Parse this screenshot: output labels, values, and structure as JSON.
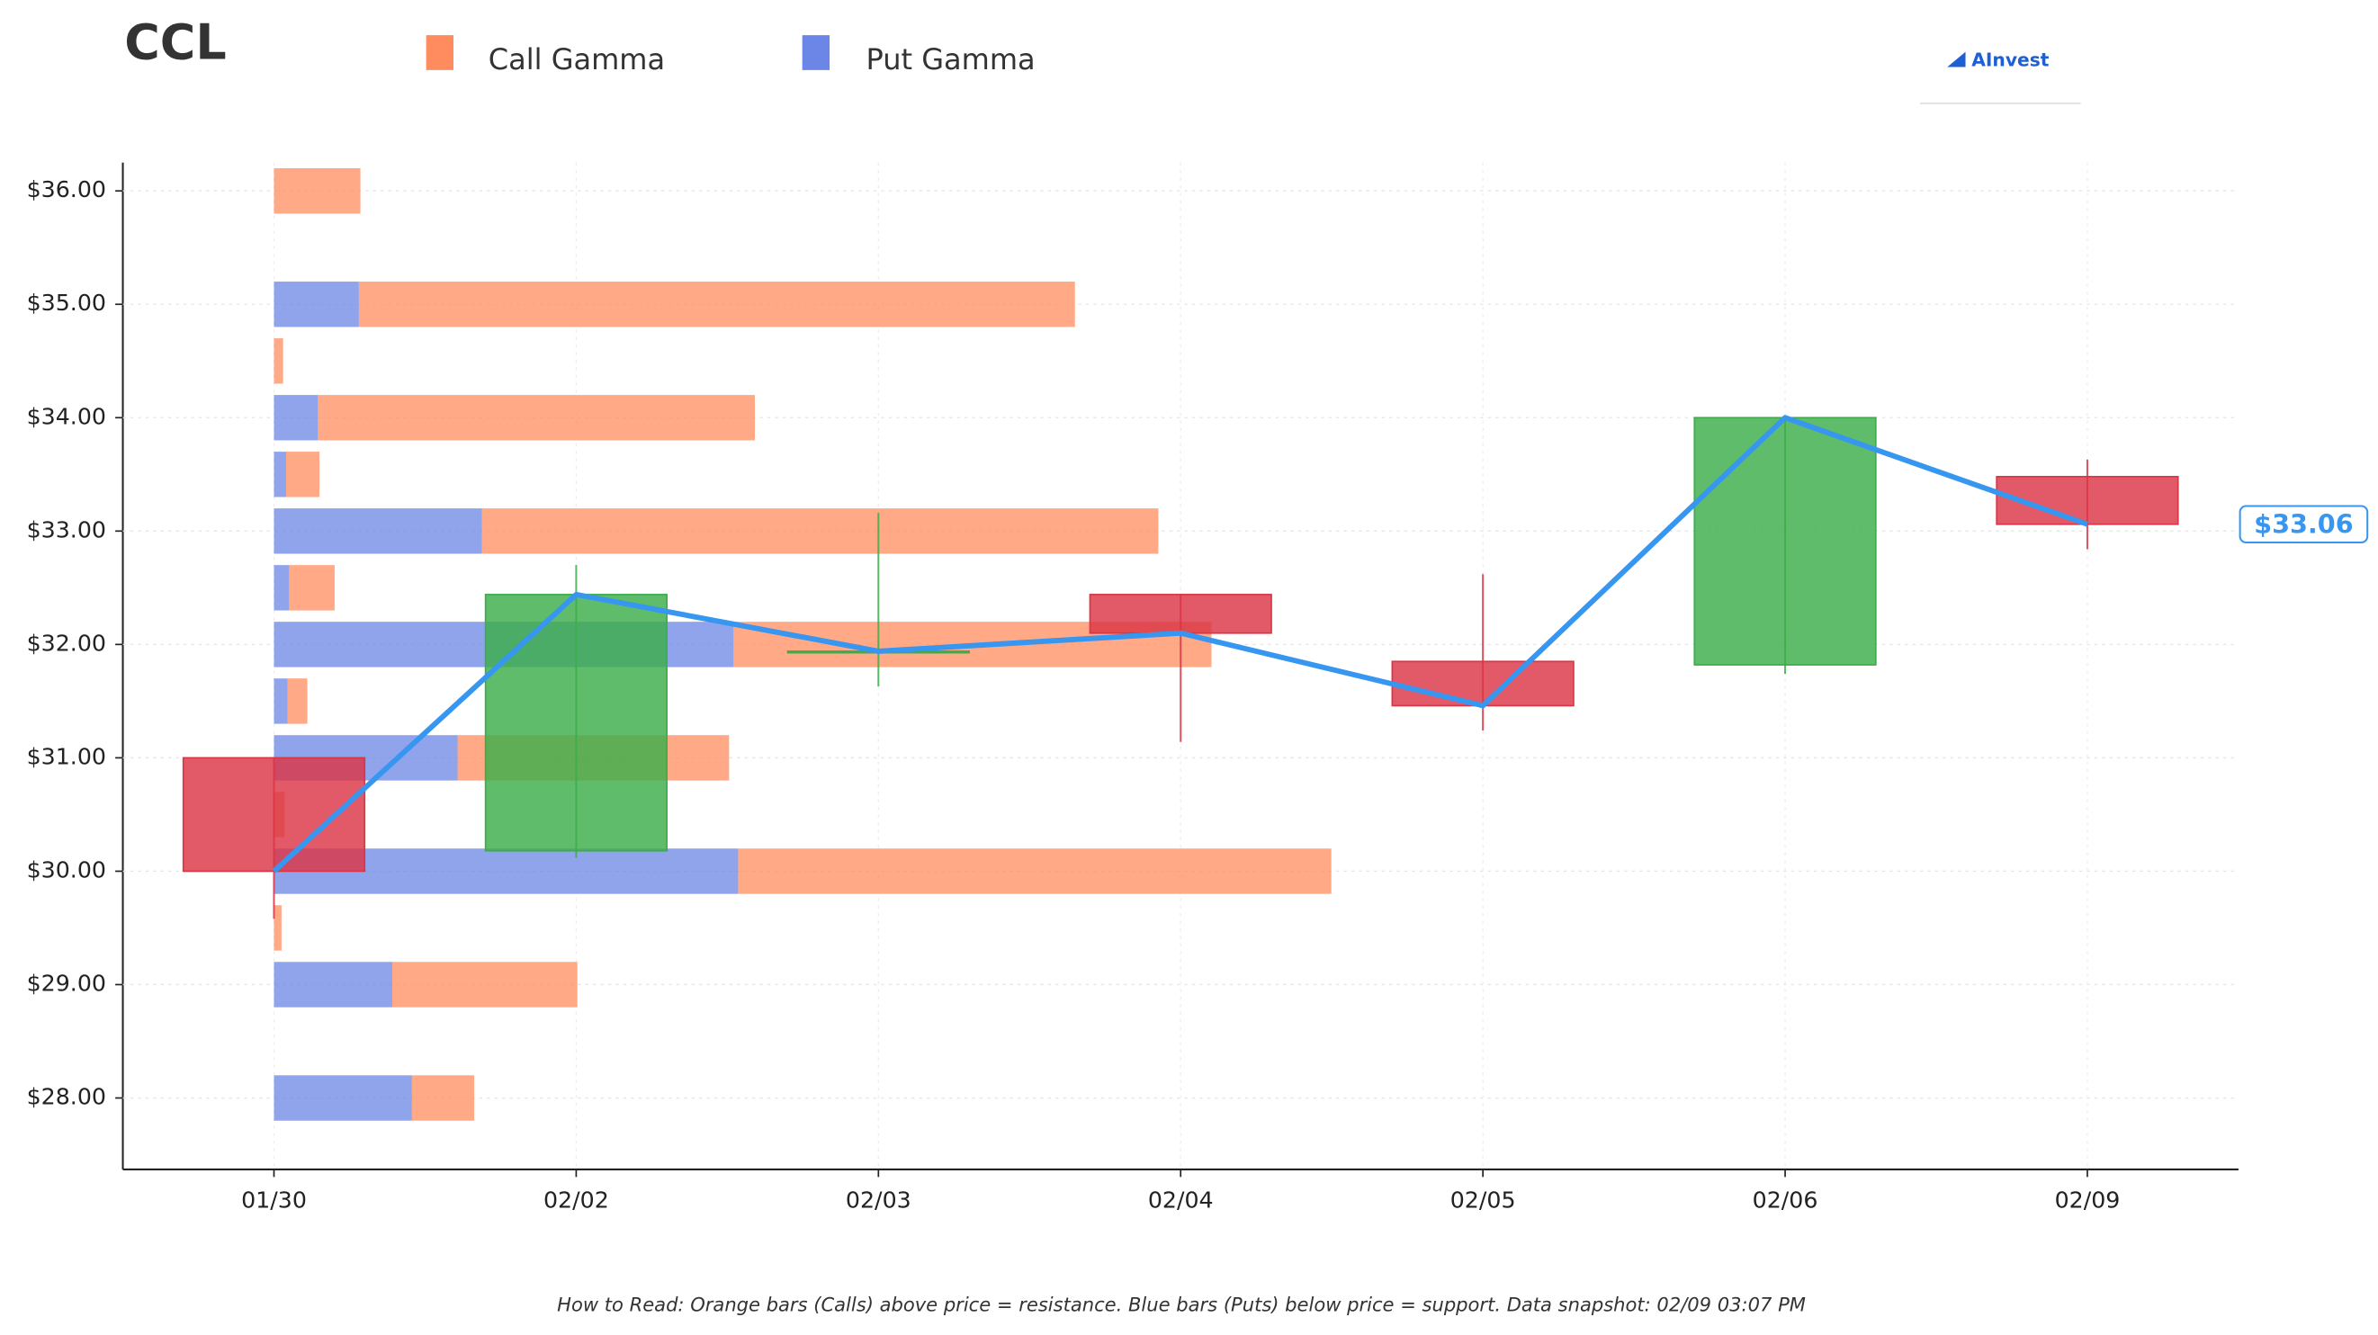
{
  "chart_data": {
    "type": "candlestick",
    "title": "CCL",
    "logo": "AInvest",
    "footnote": "How to Read: Orange bars (Calls) above price = resistance. Blue bars (Puts) below price = support. Data snapshot: 02/09 03:07 PM",
    "categories": [
      "01/30",
      "02/02",
      "02/03",
      "02/04",
      "02/05",
      "02/06",
      "02/09"
    ],
    "open": [
      31.0,
      30.18,
      31.94,
      32.44,
      31.85,
      31.82,
      33.48
    ],
    "high": [
      31.0,
      32.7,
      33.16,
      32.44,
      32.62,
      34.0,
      33.63
    ],
    "low": [
      29.58,
      30.12,
      31.63,
      31.14,
      31.24,
      31.74,
      32.84
    ],
    "close": [
      30.0,
      32.44,
      31.94,
      32.1,
      31.46,
      34.0,
      33.06
    ],
    "up_color": "#3cad4a",
    "down_color": "#dc3545",
    "line_color": "#3796f0",
    "last_price": {
      "value": 33.06,
      "label": "$33.06"
    },
    "ylim": [
      27.37,
      36.25
    ],
    "yticks": [
      {
        "value": 28,
        "label": "$28.00"
      },
      {
        "value": 29,
        "label": "$29.00"
      },
      {
        "value": 30,
        "label": "$30.00"
      },
      {
        "value": 31,
        "label": "$31.00"
      },
      {
        "value": 32,
        "label": "$32.00"
      },
      {
        "value": 33,
        "label": "$33.00"
      },
      {
        "value": 34,
        "label": "$34.00"
      },
      {
        "value": 35,
        "label": "$35.00"
      },
      {
        "value": 36,
        "label": "$36.00"
      }
    ],
    "grid": true,
    "gamma": {
      "strikes": [
        36,
        35,
        34.5,
        34,
        33.5,
        33,
        32.5,
        32,
        31.5,
        31,
        30.5,
        30,
        29.5,
        29,
        28
      ],
      "xlim": [
        0,
        1295
      ],
      "series": [
        {
          "name": "Put Gamma",
          "color": "#6b86e6",
          "values": [
            0,
            56,
            0,
            29,
            8,
            137,
            10,
            303,
            9,
            121,
            0,
            306,
            0,
            78,
            91
          ]
        },
        {
          "name": "Call Gamma",
          "color": "#ff8c5f",
          "values": [
            57,
            472,
            6,
            288,
            22,
            446,
            30,
            315,
            13,
            179,
            7,
            391,
            5,
            122,
            41
          ]
        }
      ]
    }
  }
}
